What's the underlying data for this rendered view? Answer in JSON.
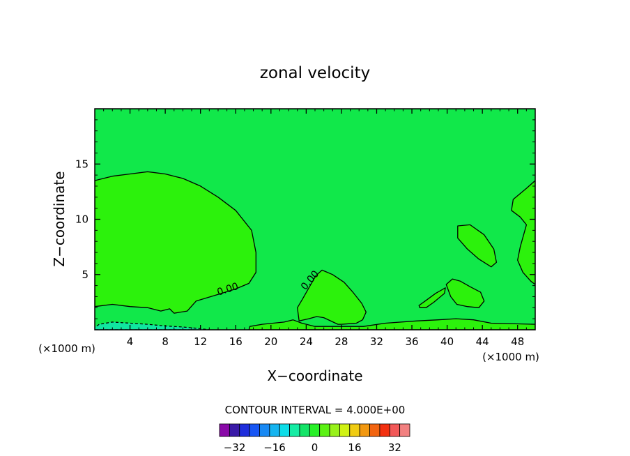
{
  "chart_data": {
    "type": "heatmap",
    "title": "zonal velocity",
    "xlabel": "X−coordinate",
    "ylabel": "Z−coordinate",
    "x_unit_left": "(×1000 m)",
    "x_unit_right": "(×1000 m)",
    "xlim": [
      0,
      50
    ],
    "ylim": [
      0,
      20
    ],
    "x_ticks": [
      4,
      8,
      12,
      16,
      20,
      24,
      28,
      32,
      36,
      40,
      44,
      48
    ],
    "y_ticks": [
      5,
      10,
      15
    ],
    "contour_interval_text": "CONTOUR INTERVAL = 4.000E+00",
    "contour_interval": 4.0,
    "contour_labels": [
      {
        "text": "0.00",
        "x": 15.2,
        "y": 3.4,
        "angle_deg": -18
      },
      {
        "text": "0.00",
        "x": 24.7,
        "y": 4.3,
        "angle_deg": -50
      }
    ],
    "background_color": "#11e84a",
    "regions": [
      {
        "name": "positive-west",
        "color": "#2cf20c",
        "points": [
          [
            0,
            2.1
          ],
          [
            2,
            2.3
          ],
          [
            4,
            2.1
          ],
          [
            6,
            2.0
          ],
          [
            7.5,
            1.7
          ],
          [
            8.5,
            1.9
          ],
          [
            9,
            1.5
          ],
          [
            10.5,
            1.7
          ],
          [
            11.5,
            2.6
          ],
          [
            14,
            3.2
          ],
          [
            16,
            3.7
          ],
          [
            17.5,
            4.2
          ],
          [
            18.3,
            5.2
          ],
          [
            18.3,
            7
          ],
          [
            17.8,
            9
          ],
          [
            16,
            10.8
          ],
          [
            14,
            12
          ],
          [
            12,
            13
          ],
          [
            10,
            13.7
          ],
          [
            8,
            14.1
          ],
          [
            6,
            14.3
          ],
          [
            4,
            14.1
          ],
          [
            2,
            13.9
          ],
          [
            0,
            13.5
          ]
        ]
      },
      {
        "name": "positive-mid",
        "color": "#2cf20c",
        "points": [
          [
            23.2,
            0.8
          ],
          [
            23,
            2
          ],
          [
            23.6,
            2.8
          ],
          [
            24.3,
            3.8
          ],
          [
            25.1,
            4.9
          ],
          [
            25.8,
            5.4
          ],
          [
            27,
            5
          ],
          [
            28.3,
            4.3
          ],
          [
            29.3,
            3.4
          ],
          [
            30.3,
            2.4
          ],
          [
            30.8,
            1.6
          ],
          [
            30.4,
            0.9
          ],
          [
            29.7,
            0.6
          ],
          [
            28,
            0.5
          ],
          [
            27.6,
            0.5
          ],
          [
            26,
            1.1
          ],
          [
            25.2,
            1.2
          ],
          [
            24.3,
            1.0
          ]
        ]
      },
      {
        "name": "positive-east-1",
        "color": "#2cf20c",
        "points": [
          [
            41.2,
            9.4
          ],
          [
            42.6,
            9.5
          ],
          [
            44.2,
            8.6
          ],
          [
            45.3,
            7.3
          ],
          [
            45.6,
            6.1
          ],
          [
            45,
            5.7
          ],
          [
            43.6,
            6.4
          ],
          [
            42.3,
            7.3
          ],
          [
            41.2,
            8.3
          ]
        ]
      },
      {
        "name": "positive-east-2",
        "color": "#2cf20c",
        "points": [
          [
            39.9,
            4.1
          ],
          [
            40.6,
            4.6
          ],
          [
            41.5,
            4.4
          ],
          [
            42.6,
            3.9
          ],
          [
            43.8,
            3.4
          ],
          [
            44.2,
            2.6
          ],
          [
            43.6,
            2
          ],
          [
            42.3,
            2.1
          ],
          [
            41.1,
            2.3
          ],
          [
            40.4,
            3
          ]
        ]
      },
      {
        "name": "positive-east-3",
        "color": "#2cf20c",
        "points": [
          [
            36.8,
            2.2
          ],
          [
            37.5,
            2.6
          ],
          [
            38.7,
            3.3
          ],
          [
            39.8,
            3.8
          ],
          [
            39.7,
            3.3
          ],
          [
            38.5,
            2.5
          ],
          [
            37.6,
            2.0
          ],
          [
            36.9,
            2.0
          ]
        ]
      },
      {
        "name": "positive-edge",
        "color": "#2cf20c",
        "points": [
          [
            50,
            13.5
          ],
          [
            49,
            12.8
          ],
          [
            47.5,
            11.8
          ],
          [
            47.3,
            10.8
          ],
          [
            48.3,
            10.2
          ],
          [
            49,
            9.5
          ],
          [
            48.3,
            7.5
          ],
          [
            48,
            6.3
          ],
          [
            48.6,
            5.2
          ],
          [
            49.5,
            4.4
          ],
          [
            50,
            4.1
          ]
        ]
      },
      {
        "name": "positive-floor",
        "color": "#2cf20c",
        "points": [
          [
            17.5,
            0
          ],
          [
            17.6,
            0.3
          ],
          [
            19,
            0.5
          ],
          [
            21.5,
            0.7
          ],
          [
            22.5,
            0.9
          ],
          [
            23.5,
            0.6
          ],
          [
            25,
            0.3
          ],
          [
            30.5,
            0.3
          ],
          [
            33,
            0.6
          ],
          [
            36.5,
            0.8
          ],
          [
            39,
            0.9
          ],
          [
            41,
            1.0
          ],
          [
            43,
            0.9
          ],
          [
            45,
            0.6
          ],
          [
            50,
            0.5
          ],
          [
            50,
            0
          ]
        ]
      },
      {
        "name": "negative-floor",
        "color": "#10e6a0",
        "points": [
          [
            0,
            0
          ],
          [
            0,
            0.2
          ],
          [
            0.5,
            0.5
          ],
          [
            2,
            0.7
          ],
          [
            4,
            0.6
          ],
          [
            6,
            0.5
          ],
          [
            8,
            0.35
          ],
          [
            10,
            0.25
          ],
          [
            12,
            0.1
          ],
          [
            13,
            0
          ]
        ]
      }
    ],
    "colorbar": {
      "colors": [
        "#8a0aa8",
        "#3a1aa8",
        "#1f2edc",
        "#1856f4",
        "#1889f4",
        "#15b4f0",
        "#0ddde8",
        "#15eca4",
        "#13e468",
        "#28f028",
        "#5cf214",
        "#98f21a",
        "#d0f214",
        "#f0cc12",
        "#f29810",
        "#f26410",
        "#f23010",
        "#f25858",
        "#f28080"
      ],
      "tick_labels": [
        "−32",
        "−16",
        "0",
        "16",
        "32"
      ],
      "tick_values": [
        -32,
        -16,
        0,
        16,
        32
      ],
      "range": [
        -38,
        38
      ]
    }
  }
}
